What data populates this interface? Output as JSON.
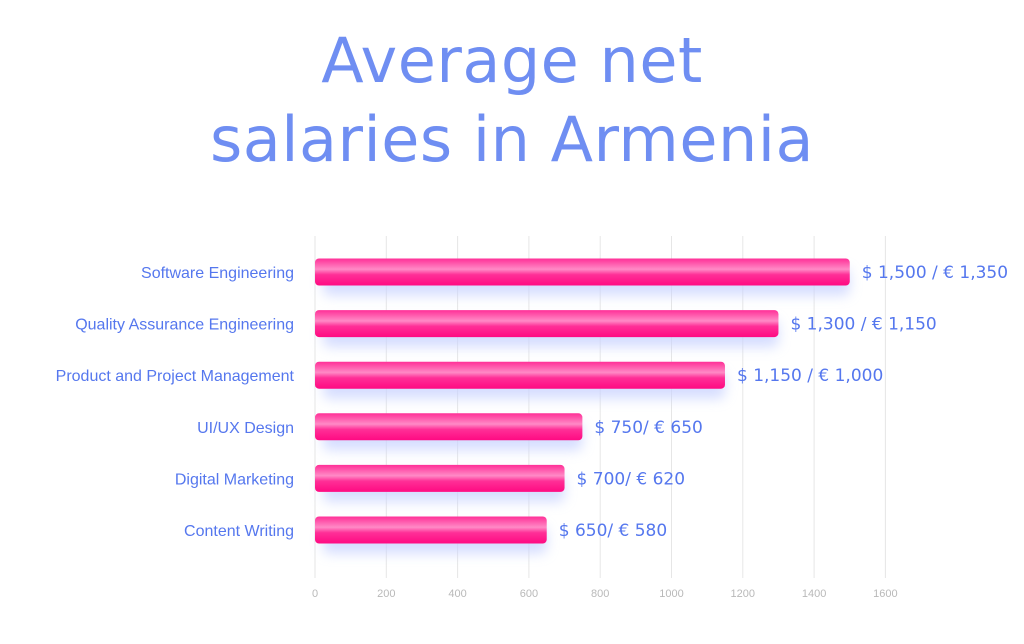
{
  "chart_data": {
    "type": "bar",
    "orientation": "horizontal",
    "title_lines": [
      "Average net",
      "salaries in Armenia"
    ],
    "categories": [
      "Software Engineering",
      "Quality Assurance Engineering",
      "Product and Project Management",
      "UI/UX Design",
      "Digital Marketing",
      "Content Writing"
    ],
    "values": [
      1500,
      1300,
      1150,
      750,
      700,
      650
    ],
    "data_labels": [
      "$ 1,500 / € 1,350",
      "$ 1,300 / € 1,150",
      "$ 1,150 / € 1,000",
      "$ 750/ € 650",
      "$ 700/ € 620",
      "$ 650/ € 580"
    ],
    "xticks": [
      0,
      200,
      400,
      600,
      800,
      1000,
      1200,
      1400,
      1600
    ],
    "xlim": [
      0,
      1600
    ],
    "grid": true,
    "colors": {
      "bar": "#ff1a8c",
      "bar_highlight": "#ff7fc0",
      "bar_shadow": "#c8d2ff",
      "title": "#6f8ef2",
      "labels": "#5577ee",
      "ticks": "#b9b9b9"
    }
  }
}
